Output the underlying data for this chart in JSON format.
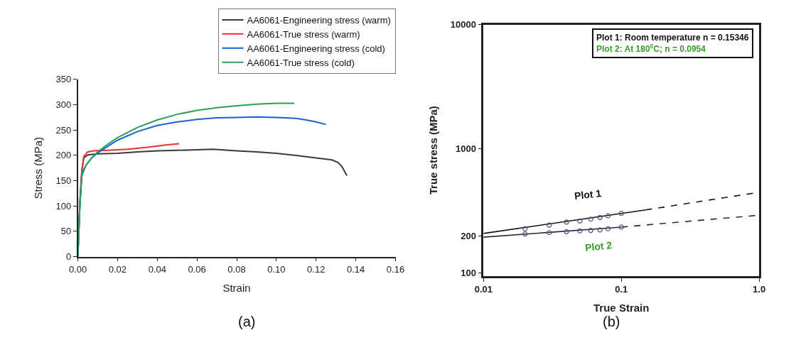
{
  "chart_data": [
    {
      "type": "line",
      "title": "(a)",
      "xlabel": "Strain",
      "ylabel": "Stress (MPa)",
      "xlim": [
        0,
        0.16
      ],
      "xticks": [
        {
          "value": 0,
          "label": "0.00"
        },
        {
          "value": 0.02,
          "label": "0.02"
        },
        {
          "value": 0.04,
          "label": "0.04"
        },
        {
          "value": 0.06,
          "label": "0.06"
        },
        {
          "value": 0.08,
          "label": "0.08"
        },
        {
          "value": 0.1,
          "label": "0.10"
        },
        {
          "value": 0.12,
          "label": "0.12"
        },
        {
          "value": 0.14,
          "label": "0.14"
        },
        {
          "value": 0.16,
          "label": "0.16"
        }
      ],
      "ylim": [
        0,
        350
      ],
      "yticks": [
        0,
        50,
        100,
        150,
        200,
        250,
        300,
        350
      ],
      "grid": false,
      "legend": "top right",
      "marker": "none",
      "line_style": "solid",
      "series": [
        {
          "name": "AA6061-Engineering stress (warm)",
          "color": "#3a3a3a",
          "x": [
            0,
            0.001,
            0.002,
            0.003,
            0.005,
            0.01,
            0.02,
            0.03,
            0.04,
            0.05,
            0.06,
            0.068,
            0.08,
            0.09,
            0.1,
            0.11,
            0.12,
            0.128,
            0.131,
            0.133,
            0.1355
          ],
          "values": [
            0,
            100,
            170,
            195,
            201,
            203,
            204,
            207,
            209,
            210,
            211,
            212,
            209,
            207,
            204,
            200,
            195,
            191,
            186,
            178,
            160
          ]
        },
        {
          "name": "AA6061-True stress (warm)",
          "color": "#e8312f",
          "x": [
            0,
            0.001,
            0.002,
            0.003,
            0.005,
            0.008,
            0.015,
            0.025,
            0.035,
            0.045,
            0.051
          ],
          "values": [
            0,
            110,
            170,
            198,
            207,
            209,
            210,
            212,
            216,
            221,
            223
          ]
        },
        {
          "name": "AA6061-Engineering stress (cold)",
          "color": "#1f5fd6",
          "x": [
            0,
            0.001,
            0.002,
            0.004,
            0.007,
            0.01,
            0.015,
            0.02,
            0.03,
            0.04,
            0.05,
            0.06,
            0.07,
            0.08,
            0.09,
            0.1,
            0.11,
            0.115,
            0.12,
            0.125
          ],
          "values": [
            0,
            100,
            160,
            180,
            195,
            205,
            218,
            230,
            247,
            259,
            266,
            271,
            274,
            275,
            276,
            275,
            273,
            270,
            266,
            261
          ]
        },
        {
          "name": "AA6061-True stress (cold)",
          "color": "#27a05a",
          "x": [
            0,
            0.001,
            0.002,
            0.004,
            0.007,
            0.01,
            0.015,
            0.02,
            0.03,
            0.04,
            0.05,
            0.06,
            0.07,
            0.08,
            0.09,
            0.1,
            0.109
          ],
          "values": [
            0,
            100,
            165,
            180,
            195,
            207,
            222,
            235,
            255,
            270,
            281,
            289,
            294,
            298,
            301,
            303,
            303
          ]
        }
      ]
    },
    {
      "type": "line",
      "title": "(b)",
      "xlabel": "True Strain",
      "ylabel": "True stress (MPa)",
      "log": "xy",
      "xlim": [
        0.01,
        1
      ],
      "xticks": [
        0.01,
        0.1,
        {
          "value": 1,
          "label": "1.0"
        }
      ],
      "ylim": [
        95,
        10000
      ],
      "yticks": [
        100,
        200,
        1000,
        10000
      ],
      "grid": false,
      "marker": "none",
      "annotations": [
        "Plot 1: Room temperature n = 0.15346",
        "Plot 2: At 180$^{0}$C; n = 0.0954",
        "Plot 1",
        "Plot 2"
      ],
      "series": [
        {
          "type": "line",
          "color": "#111111",
          "x": [
            0.01,
            0.15
          ],
          "values": [
            209,
            323
          ],
          "line_style": "solid"
        },
        {
          "type": "line",
          "color": "#111111",
          "x": [
            0.15,
            1
          ],
          "values": [
            323,
            448
          ],
          "line_style": "dashed"
        },
        {
          "type": "scatter",
          "color": "#555577",
          "marker": "circle",
          "x": [
            0.02,
            0.03,
            0.04,
            0.05,
            0.06,
            0.07,
            0.08,
            0.1
          ],
          "values": [
            228,
            244,
            258,
            263,
            272,
            281,
            290,
            303
          ]
        },
        {
          "type": "line",
          "color": "#1f2d3d",
          "x": [
            0.01,
            0.1
          ],
          "values": [
            195,
            235
          ],
          "line_style": "solid"
        },
        {
          "type": "line",
          "color": "#1f2d3d",
          "x": [
            0.1,
            1
          ],
          "values": [
            235,
            293
          ],
          "line_style": "dashed"
        },
        {
          "type": "scatter",
          "color": "#555577",
          "marker": "circle",
          "x": [
            0.02,
            0.03,
            0.04,
            0.05,
            0.06,
            0.07,
            0.08,
            0.1
          ],
          "values": [
            207,
            212,
            216,
            219,
            221,
            223,
            228,
            235
          ]
        }
      ]
    }
  ]
}
